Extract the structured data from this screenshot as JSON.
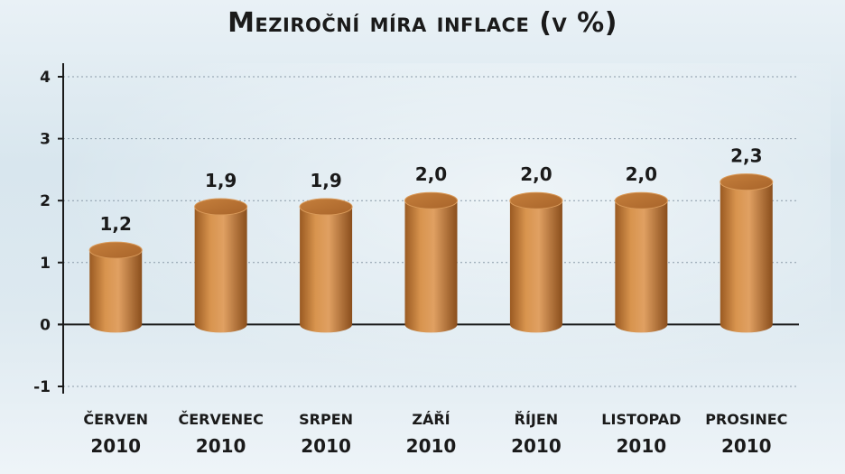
{
  "chart_data": {
    "type": "bar",
    "title": "Meziroční míra inflace (v %)",
    "categories": [
      {
        "month": "ČERVEN",
        "year": "2010"
      },
      {
        "month": "ČERVENEC",
        "year": "2010"
      },
      {
        "month": "SRPEN",
        "year": "2010"
      },
      {
        "month": "ZÁŘÍ",
        "year": "2010"
      },
      {
        "month": "ŘÍJEN",
        "year": "2010"
      },
      {
        "month": "LISTOPAD",
        "year": "2010"
      },
      {
        "month": "PROSINEC",
        "year": "2010"
      }
    ],
    "values": [
      1.2,
      1.9,
      1.9,
      2.0,
      2.0,
      2.0,
      2.3
    ],
    "data_labels": [
      "1,2",
      "1,9",
      "1,9",
      "2,0",
      "2,0",
      "2,0",
      "2,3"
    ],
    "yticks": [
      -1,
      0,
      1,
      2,
      3,
      4
    ],
    "ylim": [
      -1,
      4
    ],
    "grid": true,
    "bar_color": "#c07a3a",
    "xlabel": "",
    "ylabel": ""
  }
}
